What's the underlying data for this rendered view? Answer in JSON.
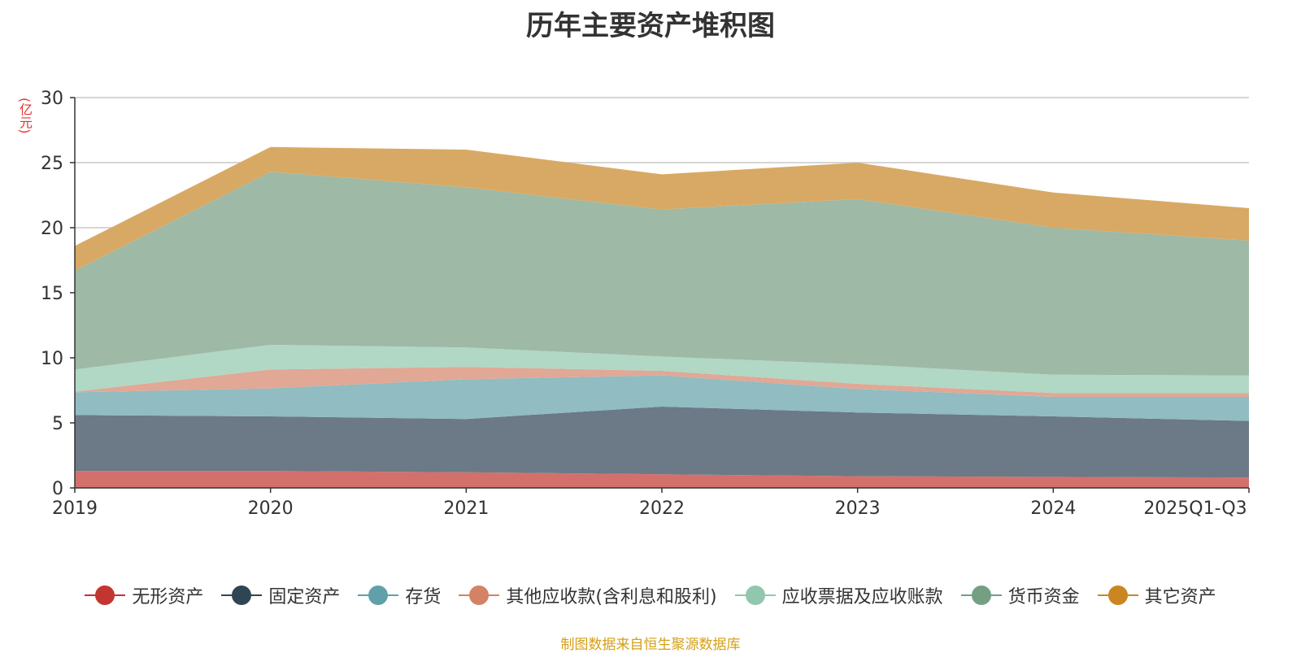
{
  "chart_data": {
    "type": "area",
    "stacked": true,
    "title": "历年主要资产堆积图",
    "ylabel": "(亿元)",
    "xlabel": "",
    "categories": [
      "2019",
      "2020",
      "2021",
      "2022",
      "2023",
      "2024",
      "2025Q1-Q3"
    ],
    "ylim": [
      0,
      30
    ],
    "yticks": [
      0,
      5,
      10,
      15,
      20,
      25,
      30
    ],
    "grid": true,
    "legend_position": "bottom",
    "series": [
      {
        "name": "无形资产",
        "color": "#c23531",
        "fill": "#d4706c",
        "values": [
          1.3,
          1.3,
          1.2,
          1.05,
          0.9,
          0.85,
          0.8
        ]
      },
      {
        "name": "固定资产",
        "color": "#2f4554",
        "fill": "#6b7a86",
        "values": [
          4.3,
          4.2,
          4.1,
          5.2,
          4.9,
          4.65,
          4.35
        ]
      },
      {
        "name": "存货",
        "color": "#61a0a8",
        "fill": "#90bcc2",
        "values": [
          1.75,
          2.15,
          3.05,
          2.4,
          1.8,
          1.5,
          1.85
        ]
      },
      {
        "name": "其他应收款(含利息和股利)",
        "color": "#d48265",
        "fill": "#e0a895",
        "values": [
          0.05,
          1.45,
          0.95,
          0.35,
          0.4,
          0.3,
          0.3
        ]
      },
      {
        "name": "应收票据及应收账款",
        "color": "#91c7ae",
        "fill": "#b1d7c5",
        "values": [
          1.7,
          1.9,
          1.5,
          1.1,
          1.5,
          1.4,
          1.35
        ]
      },
      {
        "name": "货币资金",
        "color": "#749f83",
        "fill": "#9eb9a5",
        "values": [
          7.6,
          13.3,
          12.3,
          11.3,
          12.7,
          11.3,
          10.35
        ]
      },
      {
        "name": "其它资产",
        "color": "#ca8622",
        "fill": "#d8a964",
        "values": [
          1.9,
          1.9,
          2.9,
          2.7,
          2.8,
          2.7,
          2.5
        ]
      }
    ]
  },
  "footer": {
    "source": "制图数据来自恒生聚源数据库"
  }
}
